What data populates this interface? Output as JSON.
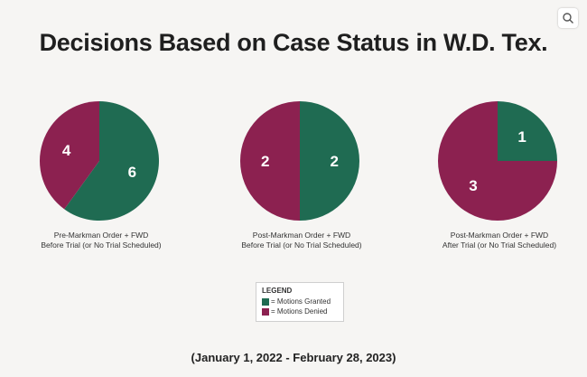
{
  "title": "Decisions Based on Case Status in W.D. Tex.",
  "zoom_icon": "magnify-icon",
  "colors": {
    "granted": "#1f6b52",
    "denied": "#8c2150",
    "label": "#ffffff"
  },
  "chart_data": [
    {
      "type": "pie",
      "caption_line1": "Pre-Markman Order + FWD",
      "caption_line2": "Before Trial (or No Trial Scheduled)",
      "slices": [
        {
          "category": "Motions Granted",
          "value": 6,
          "label": "6"
        },
        {
          "category": "Motions Denied",
          "value": 4,
          "label": "4"
        }
      ]
    },
    {
      "type": "pie",
      "caption_line1": "Post-Markman Order + FWD",
      "caption_line2": "Before Trial (or No Trial Scheduled)",
      "slices": [
        {
          "category": "Motions Granted",
          "value": 2,
          "label": "2"
        },
        {
          "category": "Motions Denied",
          "value": 2,
          "label": "2"
        }
      ]
    },
    {
      "type": "pie",
      "caption_line1": "Post-Markman Order + FWD",
      "caption_line2": "After Trial (or No Trial Scheduled)",
      "slices": [
        {
          "category": "Motions Granted",
          "value": 1,
          "label": "1"
        },
        {
          "category": "Motions Denied",
          "value": 3,
          "label": "3"
        }
      ]
    }
  ],
  "legend": {
    "title": "LEGEND",
    "items": [
      {
        "label": "= Motions Granted",
        "color": "#1f6b52"
      },
      {
        "label": "= Motions Denied",
        "color": "#8c2150"
      }
    ]
  },
  "date_range": "(January 1, 2022 - February 28, 2023)"
}
